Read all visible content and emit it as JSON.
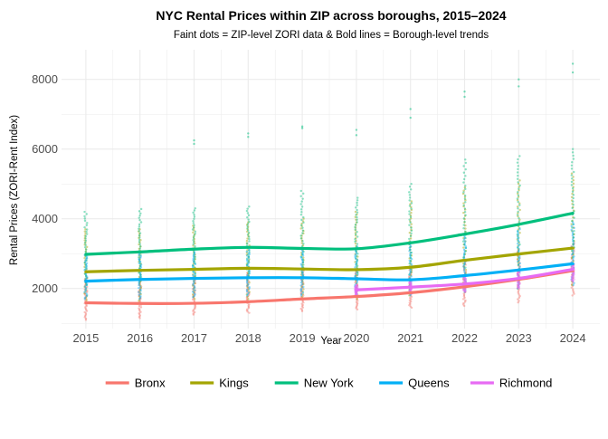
{
  "chart_data": {
    "type": "line",
    "title": "NYC Rental Prices within ZIP across boroughs, 2015–2024",
    "subtitle": "Faint dots = ZIP-level ZORI data & Bold lines = Borough-level trends",
    "xlabel": "Year",
    "ylabel": "Rental Prices (ZORI-Rent Index)",
    "x": [
      2015,
      2016,
      2017,
      2018,
      2019,
      2020,
      2021,
      2022,
      2023,
      2024
    ],
    "xlim": [
      2014.55,
      2024.5
    ],
    "ylim": [
      850,
      8850
    ],
    "y_ticks": [
      2000,
      4000,
      6000,
      8000
    ],
    "grid": true,
    "legend_position": "bottom",
    "series": [
      {
        "name": "Bronx",
        "color": "#F8766D",
        "values": [
          1590,
          1570,
          1575,
          1620,
          1700,
          1770,
          1880,
          2050,
          2260,
          2510
        ],
        "point_range": [
          [
            1100,
            2300
          ],
          [
            1150,
            2300
          ],
          [
            1250,
            2350
          ],
          [
            1300,
            2450
          ],
          [
            1350,
            2500
          ],
          [
            1400,
            2550
          ],
          [
            1450,
            2600
          ],
          [
            1500,
            2800
          ],
          [
            1600,
            3100
          ],
          [
            1800,
            3300
          ]
        ]
      },
      {
        "name": "Kings",
        "color": "#A3A500",
        "values": [
          2480,
          2520,
          2550,
          2580,
          2560,
          2540,
          2610,
          2810,
          2990,
          3160
        ],
        "point_range": [
          [
            1600,
            3700
          ],
          [
            1650,
            3700
          ],
          [
            1700,
            3800
          ],
          [
            1700,
            3900
          ],
          [
            1700,
            4000
          ],
          [
            1700,
            4200
          ],
          [
            1800,
            4500
          ],
          [
            1900,
            4900
          ],
          [
            2000,
            5100
          ],
          [
            2100,
            5300
          ]
        ]
      },
      {
        "name": "New York",
        "color": "#00BF7D",
        "values": [
          2980,
          3050,
          3130,
          3180,
          3150,
          3140,
          3310,
          3560,
          3840,
          4160
        ],
        "point_range": [
          [
            2100,
            4200
          ],
          [
            2200,
            4280
          ],
          [
            2300,
            4300
          ],
          [
            2300,
            4350
          ],
          [
            2300,
            4800
          ],
          [
            2300,
            4600
          ],
          [
            2400,
            5000
          ],
          [
            2600,
            5700
          ],
          [
            2700,
            5800
          ],
          [
            2900,
            6000
          ]
        ],
        "outliers": [
          [],
          [],
          [
            6150,
            6250
          ],
          [
            6350,
            6450
          ],
          [
            6600,
            6650
          ],
          [
            6400,
            6550
          ],
          [
            6900,
            7150
          ],
          [
            7500,
            7650
          ],
          [
            7800,
            8000
          ],
          [
            8200,
            8450
          ]
        ]
      },
      {
        "name": "Queens",
        "color": "#00B0F6",
        "values": [
          2210,
          2260,
          2290,
          2310,
          2310,
          2280,
          2250,
          2370,
          2530,
          2710
        ],
        "point_range": [
          [
            1700,
            3000
          ],
          [
            1700,
            3000
          ],
          [
            1750,
            3050
          ],
          [
            1800,
            3100
          ],
          [
            1800,
            3150
          ],
          [
            1800,
            3200
          ],
          [
            1800,
            3300
          ],
          [
            1900,
            3500
          ],
          [
            2000,
            3700
          ],
          [
            2100,
            3900
          ]
        ]
      },
      {
        "name": "Richmond",
        "color": "#E76BF3",
        "values": [
          null,
          null,
          null,
          null,
          null,
          1960,
          2040,
          2130,
          2290,
          2550
        ],
        "point_range": [
          null,
          null,
          null,
          null,
          null,
          [
            1800,
            2100
          ],
          [
            1850,
            2200
          ],
          [
            1900,
            2350
          ],
          [
            2000,
            2500
          ],
          [
            2200,
            2700
          ]
        ]
      }
    ]
  }
}
